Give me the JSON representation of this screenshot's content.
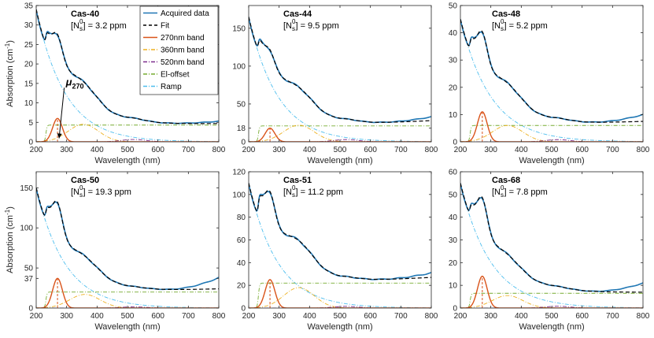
{
  "figure": {
    "ylabel": "Absorption (cm",
    "ylabel_sup": "-1",
    "ylabel_close": ")",
    "xlabel": "Wavelength (nm)"
  },
  "legend": {
    "placement": "inside top-right of first panel",
    "entries": [
      {
        "label": "Acquired data",
        "color": "#1f77b4",
        "style": "solid"
      },
      {
        "label": "Fit",
        "color": "#000000",
        "style": "dashed"
      },
      {
        "label": "270nm band",
        "color": "#d95319",
        "style": "solid"
      },
      {
        "label": "360nm band",
        "color": "#edb120",
        "style": "dashdot"
      },
      {
        "label": "520nm band",
        "color": "#7e2f8e",
        "style": "dashdot"
      },
      {
        "label": "El-offset",
        "color": "#77ac30",
        "style": "dashdot"
      },
      {
        "label": "Ramp",
        "color": "#4dbeee",
        "style": "dashdot"
      }
    ]
  },
  "annotation": {
    "symbol": "μ",
    "subscript": "270",
    "panel": "Cas-40",
    "points_to_x": 270,
    "points_to_y": 0.5,
    "text_x": 318,
    "text_y": 14.5
  },
  "chart_data": [
    {
      "type": "line",
      "title": "Cas-40",
      "ns_label": "[N",
      "ns_sub": "s",
      "ns_sup": "0",
      "ns_value": "] = 3.2 ppm",
      "xlim": [
        200,
        800
      ],
      "ylim": [
        0,
        35
      ],
      "xticks": [
        "200",
        "300",
        "400",
        "500",
        "600",
        "700",
        "800"
      ],
      "yticks": [
        "0",
        "5",
        "10",
        "15",
        "20",
        "25",
        "30",
        "35"
      ],
      "ytick_values": [
        0,
        5,
        10,
        15,
        20,
        25,
        30,
        35
      ],
      "params": {
        "b270_amp": 6.0,
        "b270_center": 270,
        "b270_sigma": 16,
        "b360_amp": 4.5,
        "b360_center": 355,
        "b360_sigma": 50,
        "b520_amp": 0.6,
        "b520_center": 520,
        "b520_sigma": 40,
        "offset": 4.3,
        "ramp_amp": 34.0,
        "ramp_decay": 95,
        "data_end": 5.3,
        "fit_end": 4.7
      }
    },
    {
      "type": "line",
      "title": "Cas-44",
      "ns_label": "[N",
      "ns_sub": "s",
      "ns_sup": "0",
      "ns_value": "] = 9.5 ppm",
      "xlim": [
        200,
        800
      ],
      "ylim": [
        0,
        180
      ],
      "xticks": [
        "200",
        "300",
        "400",
        "500",
        "600",
        "700",
        "800"
      ],
      "yticks": [
        "0",
        "18",
        "50",
        "100",
        "150"
      ],
      "ytick_values": [
        0,
        18,
        50,
        100,
        150
      ],
      "params": {
        "b270_amp": 18.0,
        "b270_center": 270,
        "b270_sigma": 16,
        "b360_amp": 22.0,
        "b360_center": 365,
        "b360_sigma": 50,
        "b520_amp": 3.0,
        "b520_center": 520,
        "b520_sigma": 40,
        "offset": 21.0,
        "ramp_amp": 165.0,
        "ramp_decay": 95,
        "data_end": 33.0,
        "fit_end": 28.0
      }
    },
    {
      "type": "line",
      "title": "Cas-48",
      "ns_label": "[N",
      "ns_sub": "s",
      "ns_sup": "0",
      "ns_value": "] = 5.2 ppm",
      "xlim": [
        200,
        800
      ],
      "ylim": [
        0,
        50
      ],
      "xticks": [
        "200",
        "300",
        "400",
        "500",
        "600",
        "700",
        "800"
      ],
      "yticks": [
        "0",
        "10",
        "20",
        "30",
        "40",
        "50"
      ],
      "ytick_values": [
        0,
        10,
        20,
        30,
        40,
        50
      ],
      "params": {
        "b270_amp": 11.0,
        "b270_center": 272,
        "b270_sigma": 16,
        "b360_amp": 6.0,
        "b360_center": 355,
        "b360_sigma": 50,
        "b520_amp": 0.8,
        "b520_center": 520,
        "b520_sigma": 40,
        "offset": 6.0,
        "ramp_amp": 45.0,
        "ramp_decay": 100,
        "data_end": 10.0,
        "fit_end": 7.5
      }
    },
    {
      "type": "line",
      "title": "Cas-50",
      "ns_label": "[N",
      "ns_sub": "s",
      "ns_sup": "0",
      "ns_value": "] = 19.3 ppm",
      "xlim": [
        200,
        800
      ],
      "ylim": [
        0,
        170
      ],
      "xticks": [
        "200",
        "300",
        "400",
        "500",
        "600",
        "700",
        "800"
      ],
      "yticks": [
        "0",
        "37",
        "50",
        "100",
        "150"
      ],
      "ytick_values": [
        0,
        37,
        50,
        100,
        150
      ],
      "params": {
        "b270_amp": 37.0,
        "b270_center": 270,
        "b270_sigma": 16,
        "b360_amp": 17.0,
        "b360_center": 360,
        "b360_sigma": 50,
        "b520_amp": 1.5,
        "b520_center": 520,
        "b520_sigma": 40,
        "offset": 20.0,
        "ramp_amp": 150.0,
        "ramp_decay": 95,
        "data_end": 38.0,
        "fit_end": 24.0
      }
    },
    {
      "type": "line",
      "title": "Cas-51",
      "ns_label": "[N",
      "ns_sub": "s",
      "ns_sup": "0",
      "ns_value": "] = 11.2 ppm",
      "xlim": [
        200,
        800
      ],
      "ylim": [
        0,
        120
      ],
      "xticks": [
        "200",
        "300",
        "400",
        "500",
        "600",
        "700",
        "800"
      ],
      "yticks": [
        "0",
        "20",
        "40",
        "60",
        "80",
        "100",
        "120"
      ],
      "ytick_values": [
        0,
        20,
        40,
        60,
        80,
        100,
        120
      ],
      "params": {
        "b270_amp": 25.0,
        "b270_center": 270,
        "b270_sigma": 16,
        "b360_amp": 18.0,
        "b360_center": 365,
        "b360_sigma": 50,
        "b520_amp": 1.5,
        "b520_center": 520,
        "b520_sigma": 40,
        "offset": 22.0,
        "ramp_amp": 110.0,
        "ramp_decay": 95,
        "data_end": 31.0,
        "fit_end": 27.0
      }
    },
    {
      "type": "line",
      "title": "Cas-68",
      "ns_label": "[N",
      "ns_sub": "s",
      "ns_sup": "0",
      "ns_value": "] = 7.8 ppm",
      "xlim": [
        200,
        800
      ],
      "ylim": [
        0,
        60
      ],
      "xticks": [
        "200",
        "300",
        "400",
        "500",
        "600",
        "700",
        "800"
      ],
      "yticks": [
        "0",
        "10",
        "20",
        "30",
        "40",
        "50",
        "60"
      ],
      "ytick_values": [
        0,
        10,
        20,
        30,
        40,
        50,
        60
      ],
      "params": {
        "b270_amp": 14.0,
        "b270_center": 272,
        "b270_sigma": 16,
        "b360_amp": 5.5,
        "b360_center": 355,
        "b360_sigma": 50,
        "b520_amp": 0.8,
        "b520_center": 520,
        "b520_sigma": 40,
        "offset": 6.5,
        "ramp_amp": 55.0,
        "ramp_decay": 100,
        "data_end": 11.0,
        "fit_end": 7.0
      }
    }
  ]
}
